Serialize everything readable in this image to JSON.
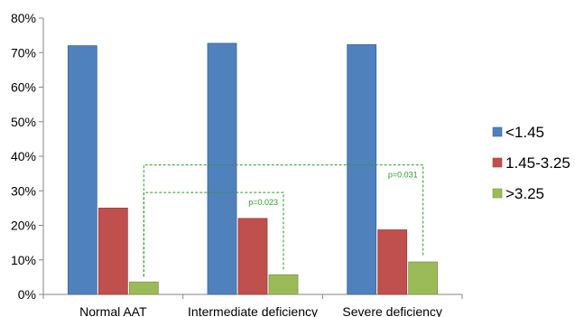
{
  "chart_data": {
    "type": "bar",
    "title": "",
    "xlabel": "",
    "ylabel": "",
    "categories": [
      "Normal AAT",
      "Intermediate deficiency",
      "Severe deficiency"
    ],
    "series": [
      {
        "name": "<1.45",
        "values": [
          72,
          72.7,
          72.3
        ],
        "color": "#4f81bd"
      },
      {
        "name": "1.45-3.25",
        "values": [
          25,
          22,
          18.7
        ],
        "color": "#c0504d"
      },
      {
        "name": ">3.25",
        "values": [
          3.6,
          5.7,
          9.4
        ],
        "color": "#9bbb59"
      }
    ],
    "ylim": [
      0,
      80
    ],
    "yticks": [
      "0%",
      "10%",
      "20%",
      "30%",
      "40%",
      "50%",
      "60%",
      "70%",
      "80%"
    ],
    "grid": false,
    "legend_position": "right",
    "annotations": [
      {
        "text": "p=0.023",
        "from_category": 0,
        "to_category": 1,
        "series": 2,
        "bracket_level": 29.5,
        "color": "#2e9a2e"
      },
      {
        "text": "p=0.031",
        "from_category": 0,
        "to_category": 2,
        "series": 2,
        "bracket_level": 37.5,
        "color": "#2e9a2e"
      }
    ]
  }
}
